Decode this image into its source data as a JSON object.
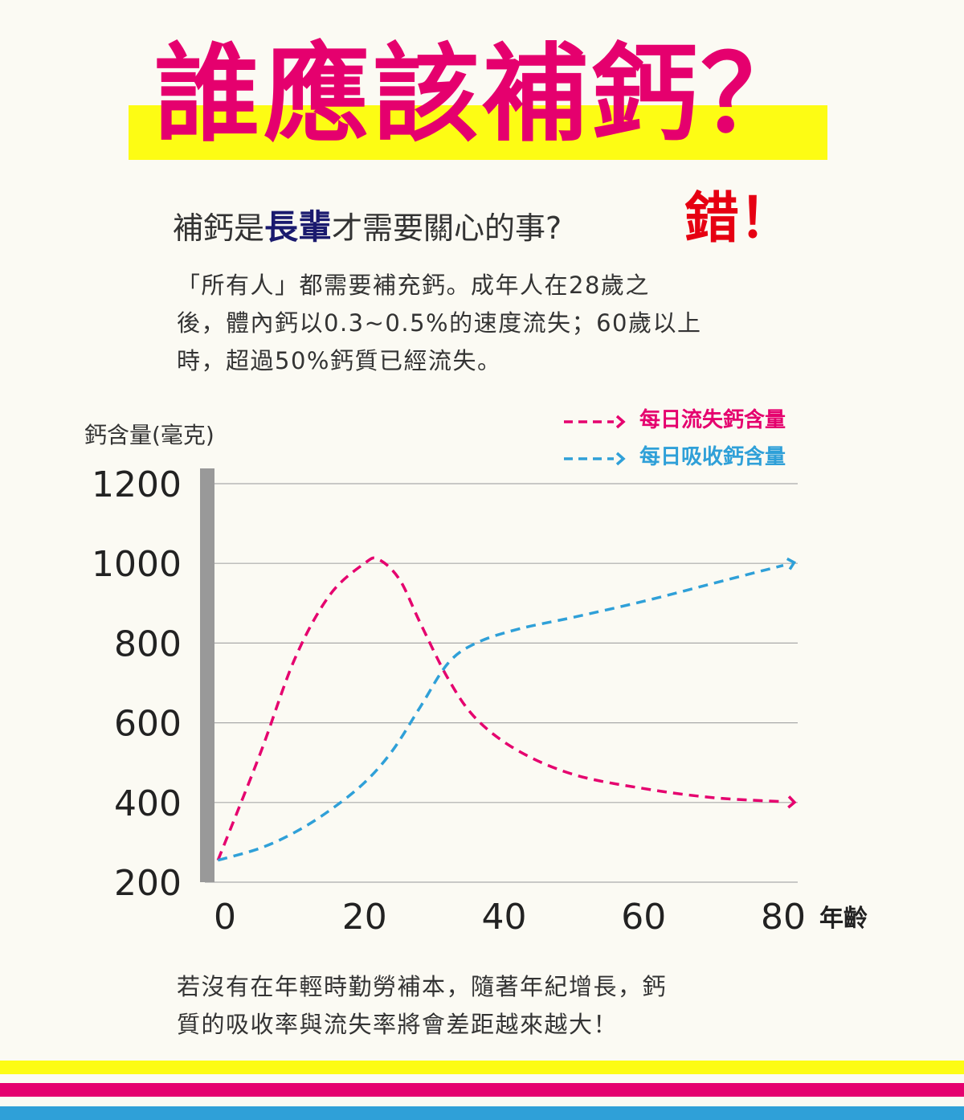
{
  "title": "誰應該補鈣？",
  "subtitle": {
    "prefix": "補鈣是",
    "accent": "長輩",
    "suffix": "才需要關心的事?",
    "wrong": "錯！"
  },
  "intro": [
    "「所有人」都需要補充鈣。成年人在28歲之",
    "後，體內鈣以0.3~0.5%的速度流失；60歲以上",
    "時，超過50%鈣質已經流失。"
  ],
  "colors": {
    "loss": "#e5006e",
    "absorb": "#2fa0d8",
    "band": "#fdfc14",
    "axis": "#999999"
  },
  "chart_data": {
    "type": "line",
    "ylabel": "鈣含量(毫克)",
    "xlabel": "年齡",
    "ylim": [
      200,
      1200
    ],
    "xlim": [
      0,
      80
    ],
    "yticks": [
      1200,
      1000,
      800,
      600,
      400,
      200
    ],
    "xticks": [
      0,
      20,
      40,
      60,
      80
    ],
    "grid": true,
    "legend_position": "top-right",
    "series": [
      {
        "name": "每日流失鈣含量",
        "color": "#e5006e",
        "style": "dashed-arrow",
        "points": [
          [
            -1,
            255
          ],
          [
            5,
            520
          ],
          [
            10,
            760
          ],
          [
            15,
            920
          ],
          [
            20,
            1000
          ],
          [
            22,
            1010
          ],
          [
            25,
            960
          ],
          [
            28,
            850
          ],
          [
            32,
            710
          ],
          [
            36,
            610
          ],
          [
            42,
            530
          ],
          [
            50,
            470
          ],
          [
            60,
            435
          ],
          [
            70,
            412
          ],
          [
            80,
            402
          ]
        ]
      },
      {
        "name": "每日吸收鈣含量",
        "color": "#2fa0d8",
        "style": "dashed-arrow",
        "points": [
          [
            -1,
            255
          ],
          [
            5,
            285
          ],
          [
            10,
            325
          ],
          [
            15,
            380
          ],
          [
            20,
            450
          ],
          [
            24,
            530
          ],
          [
            28,
            640
          ],
          [
            32,
            750
          ],
          [
            36,
            800
          ],
          [
            42,
            835
          ],
          [
            50,
            865
          ],
          [
            60,
            905
          ],
          [
            70,
            950
          ],
          [
            80,
            995
          ]
        ]
      }
    ]
  },
  "outro": [
    "若沒有在年輕時勤勞補本，隨著年紀增長，鈣",
    "質的吸收率與流失率將會差距越來越大！"
  ]
}
